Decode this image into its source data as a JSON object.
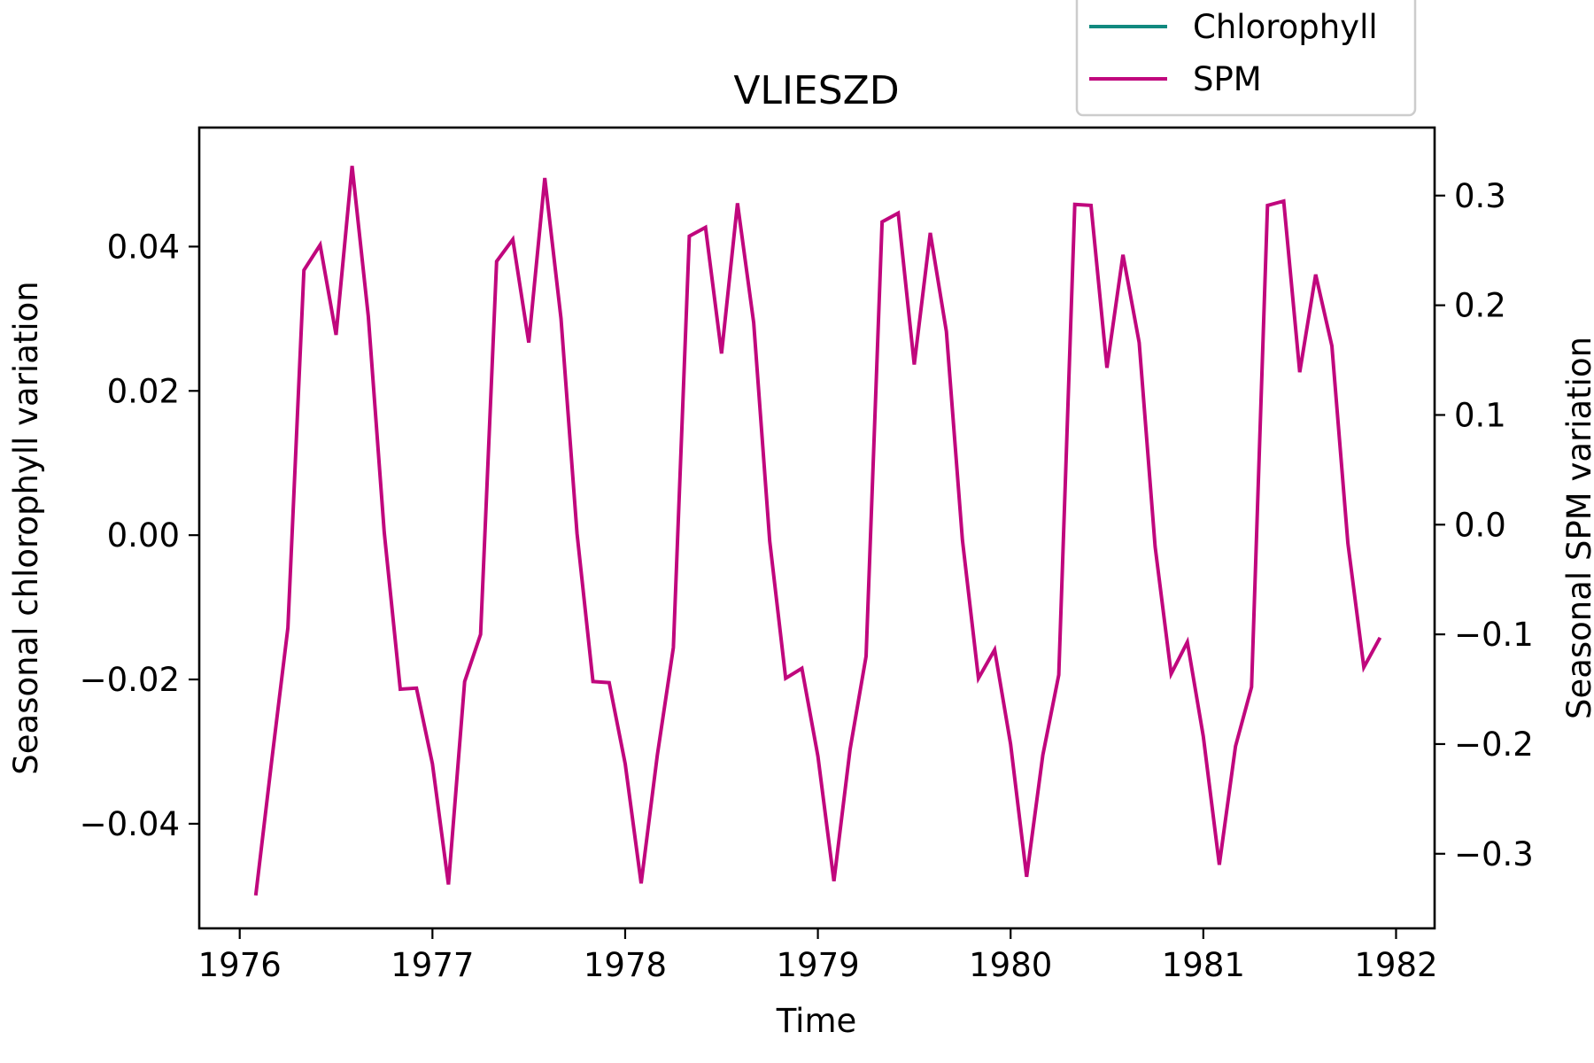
{
  "chart_data": {
    "type": "line",
    "title": "VLIESZD",
    "xlabel": "Time",
    "ylabel_left": "Seasonal chlorophyll variation",
    "ylabel_right": "Seasonal SPM variation",
    "xlim": [
      1975.79,
      1982.2
    ],
    "ylim_left": [
      -0.0545,
      0.0565
    ],
    "ylim_right": [
      -0.368,
      0.362
    ],
    "x_ticks": [
      1976,
      1977,
      1978,
      1979,
      1980,
      1981,
      1982
    ],
    "y_left_ticks": [
      {
        "value": 0.04,
        "label": "0.04"
      },
      {
        "value": 0.02,
        "label": "0.02"
      },
      {
        "value": 0.0,
        "label": "0.00"
      },
      {
        "value": -0.02,
        "label": "−0.02"
      },
      {
        "value": -0.04,
        "label": "−0.04"
      }
    ],
    "y_right_ticks": [
      {
        "value": 0.3,
        "label": "0.3"
      },
      {
        "value": 0.2,
        "label": "0.2"
      },
      {
        "value": 0.1,
        "label": "0.1"
      },
      {
        "value": 0.0,
        "label": "0.0"
      },
      {
        "value": -0.1,
        "label": "−0.1"
      },
      {
        "value": -0.2,
        "label": "−0.2"
      },
      {
        "value": -0.3,
        "label": "−0.3"
      }
    ],
    "legend_position": "top-right",
    "grid": false,
    "series": [
      {
        "name": "Chlorophyll",
        "axis": "left",
        "color": "#11897f",
        "x": [],
        "values": []
      },
      {
        "name": "SPM",
        "axis": "right",
        "color": "#c0077d",
        "x": [
          1976.083,
          1976.167,
          1976.25,
          1976.333,
          1976.417,
          1976.5,
          1976.583,
          1976.667,
          1976.75,
          1976.833,
          1976.917,
          1977.0,
          1977.083,
          1977.167,
          1977.25,
          1977.333,
          1977.417,
          1977.5,
          1977.583,
          1977.667,
          1977.75,
          1977.833,
          1977.917,
          1978.0,
          1978.083,
          1978.167,
          1978.25,
          1978.333,
          1978.417,
          1978.5,
          1978.583,
          1978.667,
          1978.75,
          1978.833,
          1978.917,
          1979.0,
          1979.083,
          1979.167,
          1979.25,
          1979.333,
          1979.417,
          1979.5,
          1979.583,
          1979.667,
          1979.75,
          1979.833,
          1979.917,
          1980.0,
          1980.083,
          1980.167,
          1980.25,
          1980.333,
          1980.417,
          1980.5,
          1980.583,
          1980.667,
          1980.75,
          1980.833,
          1980.917,
          1981.0,
          1981.083,
          1981.167,
          1981.25,
          1981.333,
          1981.417,
          1981.5,
          1981.583,
          1981.667,
          1981.75,
          1981.833,
          1981.917
        ],
        "values": [
          -0.338,
          -0.214,
          -0.094,
          0.232,
          0.255,
          0.173,
          0.327,
          0.19,
          -0.007,
          -0.15,
          -0.149,
          -0.218,
          -0.328,
          -0.143,
          -0.1,
          0.24,
          0.26,
          0.166,
          0.316,
          0.188,
          -0.008,
          -0.143,
          -0.144,
          -0.218,
          -0.327,
          -0.21,
          -0.112,
          0.263,
          0.271,
          0.156,
          0.293,
          0.184,
          -0.015,
          -0.14,
          -0.131,
          -0.211,
          -0.325,
          -0.205,
          -0.12,
          0.276,
          0.284,
          0.146,
          0.266,
          0.176,
          -0.014,
          -0.14,
          -0.114,
          -0.2,
          -0.321,
          -0.21,
          -0.137,
          0.292,
          0.291,
          0.143,
          0.246,
          0.166,
          -0.02,
          -0.136,
          -0.107,
          -0.193,
          -0.31,
          -0.202,
          -0.148,
          0.291,
          0.295,
          0.139,
          0.228,
          0.163,
          -0.017,
          -0.13,
          -0.103
        ]
      }
    ]
  }
}
